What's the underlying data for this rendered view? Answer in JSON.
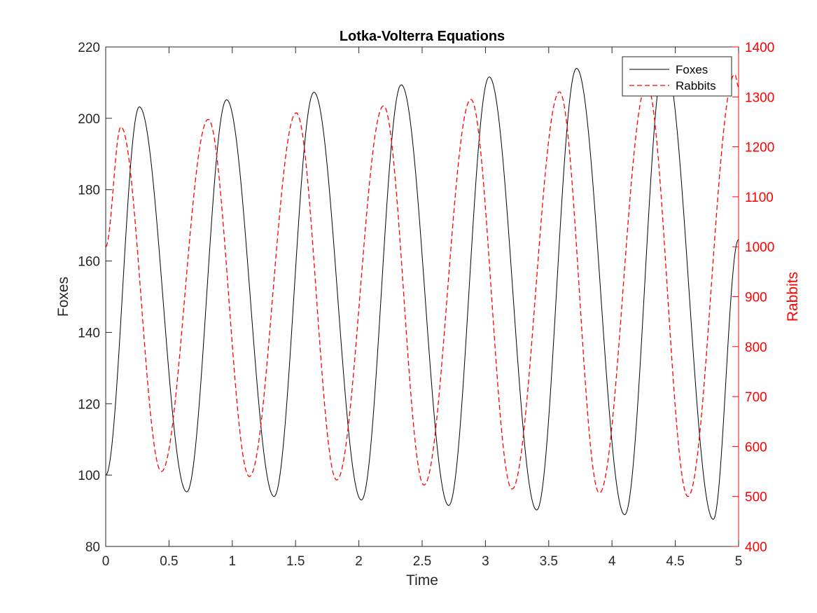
{
  "chart_data": {
    "type": "line",
    "title": "Lotka-Volterra Equations",
    "xlabel": "Time",
    "ylabel_left": "Foxes",
    "ylabel_right": "Rabbits",
    "xlim": [
      0,
      5
    ],
    "ylim_left": [
      80,
      220
    ],
    "ylim_right": [
      400,
      1400
    ],
    "xticks": [
      "0",
      "0.5",
      "1",
      "1.5",
      "2",
      "2.5",
      "3",
      "3.5",
      "4",
      "4.5",
      "5"
    ],
    "xtick_values": [
      0,
      0.5,
      1,
      1.5,
      2,
      2.5,
      3,
      3.5,
      4,
      4.5,
      5
    ],
    "yticks_left": [
      "80",
      "100",
      "120",
      "140",
      "160",
      "180",
      "200",
      "220"
    ],
    "ytick_values_left": [
      80,
      100,
      120,
      140,
      160,
      180,
      200,
      220
    ],
    "yticks_right": [
      "400",
      "500",
      "600",
      "700",
      "800",
      "900",
      "1000",
      "1100",
      "1200",
      "1300",
      "1400"
    ],
    "ytick_values_right": [
      400,
      500,
      600,
      700,
      800,
      900,
      1000,
      1100,
      1200,
      1300,
      1400
    ],
    "grid": false,
    "legend_position": "top-right",
    "colors": {
      "foxes": "#000000",
      "rabbits": "#ff0000",
      "right_axis": "#ff0000"
    },
    "series": [
      {
        "name": "Foxes",
        "axis": "left",
        "style": "solid",
        "x": [
          0,
          0.266,
          0.64,
          0.955,
          1.33,
          1.645,
          2.02,
          2.335,
          2.71,
          3.03,
          3.405,
          3.72,
          4.1,
          4.415,
          4.8,
          5.0
        ],
        "values": [
          100,
          203.2,
          95.3,
          205.2,
          94.0,
          207.3,
          93.0,
          209.4,
          91.5,
          211.6,
          90.2,
          214.0,
          88.9,
          216.8,
          87.6,
          166
        ]
      },
      {
        "name": "Rabbits",
        "axis": "right",
        "style": "dashed",
        "x": [
          0,
          0.12,
          0.44,
          0.81,
          1.135,
          1.505,
          1.825,
          2.195,
          2.515,
          2.885,
          3.21,
          3.585,
          3.9,
          4.275,
          4.6,
          4.97,
          5.0
        ],
        "values": [
          1000,
          1240,
          550,
          1255,
          540,
          1268,
          533,
          1282,
          523,
          1295,
          515,
          1310,
          507,
          1325,
          500,
          1345,
          1320
        ]
      }
    ]
  }
}
